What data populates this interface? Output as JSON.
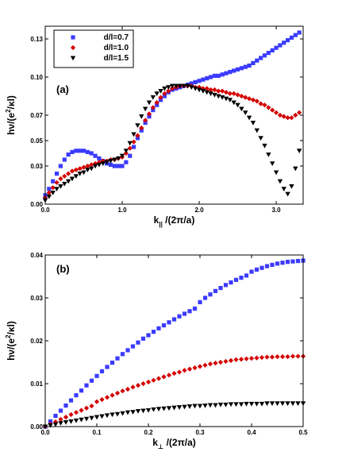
{
  "figure": {
    "background": "#ffffff"
  },
  "chart_data": [
    {
      "type": "scatter",
      "panel_label": "(a)",
      "xlabel": {
        "main": "k",
        "sub": "||",
        "rest": " /(2π/a)"
      },
      "ylabel": {
        "pre": "hν/(e",
        "sup": "2",
        "post": "/κl)"
      },
      "xlim": [
        0.0,
        3.35
      ],
      "ylim": [
        0.0,
        0.14
      ],
      "xticks": [
        0.0,
        1.0,
        2.0,
        3.0
      ],
      "xtick_labels": [
        "0.0",
        "1.0",
        "2.0",
        "3.0"
      ],
      "yticks": [
        0.0,
        0.03,
        0.05,
        0.07,
        0.1,
        0.13
      ],
      "ytick_labels": [
        "0.00",
        "0.03",
        "0.05",
        "0.07",
        "0.10",
        "0.13"
      ],
      "legend_position": "top-left",
      "series": [
        {
          "name": "d/l=0.7",
          "marker": "square",
          "color": "#3b3bff",
          "x": [
            0.0,
            0.05,
            0.1,
            0.15,
            0.2,
            0.25,
            0.3,
            0.35,
            0.4,
            0.45,
            0.5,
            0.55,
            0.6,
            0.65,
            0.7,
            0.75,
            0.8,
            0.85,
            0.9,
            0.95,
            1.0,
            1.05,
            1.1,
            1.15,
            1.2,
            1.25,
            1.3,
            1.35,
            1.4,
            1.45,
            1.5,
            1.55,
            1.6,
            1.65,
            1.7,
            1.75,
            1.8,
            1.85,
            1.9,
            1.95,
            2.0,
            2.05,
            2.1,
            2.15,
            2.2,
            2.25,
            2.3,
            2.35,
            2.4,
            2.45,
            2.5,
            2.55,
            2.6,
            2.65,
            2.7,
            2.75,
            2.8,
            2.85,
            2.9,
            2.95,
            3.0,
            3.05,
            3.1,
            3.15,
            3.2,
            3.25,
            3.3
          ],
          "y": [
            0.007,
            0.012,
            0.018,
            0.024,
            0.03,
            0.035,
            0.039,
            0.041,
            0.042,
            0.042,
            0.042,
            0.041,
            0.04,
            0.038,
            0.036,
            0.034,
            0.032,
            0.031,
            0.03,
            0.03,
            0.03,
            0.033,
            0.038,
            0.045,
            0.052,
            0.058,
            0.064,
            0.069,
            0.074,
            0.078,
            0.082,
            0.085,
            0.088,
            0.09,
            0.091,
            0.092,
            0.093,
            0.094,
            0.095,
            0.096,
            0.097,
            0.098,
            0.099,
            0.1,
            0.101,
            0.101,
            0.102,
            0.103,
            0.104,
            0.105,
            0.106,
            0.107,
            0.108,
            0.109,
            0.111,
            0.113,
            0.115,
            0.117,
            0.119,
            0.121,
            0.123,
            0.125,
            0.127,
            0.129,
            0.131,
            0.133,
            0.135
          ]
        },
        {
          "name": "d/l=1.0",
          "marker": "diamond",
          "color": "#d40000",
          "x": [
            0.0,
            0.05,
            0.1,
            0.15,
            0.2,
            0.25,
            0.3,
            0.35,
            0.4,
            0.45,
            0.5,
            0.55,
            0.6,
            0.65,
            0.7,
            0.75,
            0.8,
            0.85,
            0.9,
            0.95,
            1.0,
            1.05,
            1.1,
            1.15,
            1.2,
            1.25,
            1.3,
            1.35,
            1.4,
            1.45,
            1.5,
            1.55,
            1.6,
            1.65,
            1.7,
            1.75,
            1.8,
            1.85,
            1.9,
            1.95,
            2.0,
            2.05,
            2.1,
            2.15,
            2.2,
            2.25,
            2.3,
            2.35,
            2.4,
            2.45,
            2.5,
            2.55,
            2.6,
            2.65,
            2.7,
            2.75,
            2.8,
            2.85,
            2.9,
            2.95,
            3.0,
            3.05,
            3.1,
            3.15,
            3.2,
            3.25,
            3.3
          ],
          "y": [
            0.005,
            0.009,
            0.013,
            0.017,
            0.02,
            0.022,
            0.024,
            0.026,
            0.027,
            0.028,
            0.029,
            0.03,
            0.031,
            0.032,
            0.033,
            0.034,
            0.034,
            0.035,
            0.035,
            0.036,
            0.037,
            0.04,
            0.044,
            0.049,
            0.054,
            0.06,
            0.066,
            0.071,
            0.076,
            0.08,
            0.084,
            0.087,
            0.089,
            0.091,
            0.092,
            0.093,
            0.093,
            0.093,
            0.093,
            0.092,
            0.092,
            0.091,
            0.091,
            0.09,
            0.09,
            0.089,
            0.089,
            0.088,
            0.087,
            0.087,
            0.086,
            0.085,
            0.084,
            0.083,
            0.082,
            0.081,
            0.079,
            0.078,
            0.076,
            0.074,
            0.072,
            0.07,
            0.069,
            0.068,
            0.068,
            0.07,
            0.072
          ]
        },
        {
          "name": "d/l=1.5",
          "marker": "triangle-down",
          "color": "#000000",
          "x": [
            0.0,
            0.05,
            0.1,
            0.15,
            0.2,
            0.25,
            0.3,
            0.35,
            0.4,
            0.45,
            0.5,
            0.55,
            0.6,
            0.65,
            0.7,
            0.75,
            0.8,
            0.85,
            0.9,
            0.95,
            1.0,
            1.05,
            1.1,
            1.15,
            1.2,
            1.25,
            1.3,
            1.35,
            1.4,
            1.45,
            1.5,
            1.55,
            1.6,
            1.65,
            1.7,
            1.75,
            1.8,
            1.85,
            1.9,
            1.95,
            2.0,
            2.05,
            2.1,
            2.15,
            2.2,
            2.25,
            2.3,
            2.35,
            2.4,
            2.45,
            2.5,
            2.55,
            2.6,
            2.65,
            2.7,
            2.75,
            2.8,
            2.85,
            2.9,
            2.95,
            3.0,
            3.05,
            3.1,
            3.15,
            3.2,
            3.25,
            3.3
          ],
          "y": [
            0.003,
            0.006,
            0.009,
            0.012,
            0.014,
            0.016,
            0.018,
            0.02,
            0.022,
            0.024,
            0.025,
            0.027,
            0.028,
            0.03,
            0.031,
            0.032,
            0.033,
            0.034,
            0.035,
            0.036,
            0.038,
            0.042,
            0.048,
            0.055,
            0.062,
            0.069,
            0.075,
            0.08,
            0.084,
            0.087,
            0.089,
            0.091,
            0.092,
            0.093,
            0.093,
            0.093,
            0.093,
            0.093,
            0.092,
            0.091,
            0.09,
            0.089,
            0.088,
            0.087,
            0.086,
            0.085,
            0.084,
            0.083,
            0.082,
            0.08,
            0.078,
            0.075,
            0.072,
            0.068,
            0.064,
            0.058,
            0.052,
            0.046,
            0.039,
            0.032,
            0.025,
            0.018,
            0.012,
            0.008,
            0.014,
            0.028,
            0.042
          ]
        }
      ]
    },
    {
      "type": "scatter",
      "panel_label": "(b)",
      "xlabel": {
        "main": "k",
        "sub": "⊥",
        "rest": " /(2π/a)"
      },
      "ylabel": {
        "pre": "hν/(e",
        "sup": "2",
        "post": "/κl)"
      },
      "xlim": [
        0.0,
        0.5
      ],
      "ylim": [
        0.0,
        0.04
      ],
      "xticks": [
        0.0,
        0.1,
        0.2,
        0.3,
        0.4,
        0.5
      ],
      "xtick_labels": [
        "0.0",
        "0.1",
        "0.2",
        "0.3",
        "0.4",
        "0.5"
      ],
      "yticks": [
        0.0,
        0.01,
        0.02,
        0.03,
        0.04
      ],
      "ytick_labels": [
        "0.00",
        "0.01",
        "0.02",
        "0.03",
        "0.04"
      ],
      "series": [
        {
          "name": "d/l=0.7",
          "marker": "square",
          "color": "#3b3bff",
          "x": [
            0.0,
            0.01,
            0.02,
            0.03,
            0.04,
            0.05,
            0.06,
            0.07,
            0.08,
            0.09,
            0.1,
            0.11,
            0.12,
            0.13,
            0.14,
            0.15,
            0.16,
            0.17,
            0.18,
            0.19,
            0.2,
            0.21,
            0.22,
            0.23,
            0.24,
            0.25,
            0.26,
            0.27,
            0.28,
            0.29,
            0.3,
            0.31,
            0.32,
            0.33,
            0.34,
            0.35,
            0.36,
            0.37,
            0.38,
            0.39,
            0.4,
            0.41,
            0.42,
            0.43,
            0.44,
            0.45,
            0.46,
            0.47,
            0.48,
            0.49,
            0.5
          ],
          "y": [
            0.0,
            0.0012,
            0.0025,
            0.0037,
            0.0049,
            0.0061,
            0.0073,
            0.0084,
            0.0096,
            0.0107,
            0.0118,
            0.0129,
            0.0139,
            0.0149,
            0.0159,
            0.0169,
            0.0178,
            0.0187,
            0.0196,
            0.0205,
            0.0213,
            0.0221,
            0.0229,
            0.0236,
            0.0243,
            0.025,
            0.0257,
            0.0263,
            0.0269,
            0.0275,
            0.029,
            0.03,
            0.0308,
            0.0316,
            0.0323,
            0.033,
            0.0336,
            0.0342,
            0.0347,
            0.0352,
            0.0361,
            0.0366,
            0.037,
            0.0374,
            0.0377,
            0.038,
            0.0382,
            0.0384,
            0.0385,
            0.0386,
            0.0387
          ]
        },
        {
          "name": "d/l=1.0",
          "marker": "diamond",
          "color": "#d40000",
          "x": [
            0.0,
            0.01,
            0.02,
            0.03,
            0.04,
            0.05,
            0.06,
            0.07,
            0.08,
            0.09,
            0.1,
            0.11,
            0.12,
            0.13,
            0.14,
            0.15,
            0.16,
            0.17,
            0.18,
            0.19,
            0.2,
            0.21,
            0.22,
            0.23,
            0.24,
            0.25,
            0.26,
            0.27,
            0.28,
            0.29,
            0.3,
            0.31,
            0.32,
            0.33,
            0.34,
            0.35,
            0.36,
            0.37,
            0.38,
            0.39,
            0.4,
            0.41,
            0.42,
            0.43,
            0.44,
            0.45,
            0.46,
            0.47,
            0.48,
            0.49,
            0.5
          ],
          "y": [
            0.0,
            0.0006,
            0.0011,
            0.0017,
            0.0022,
            0.0028,
            0.0033,
            0.0038,
            0.0043,
            0.0048,
            0.0058,
            0.0063,
            0.0068,
            0.0073,
            0.0078,
            0.0083,
            0.0087,
            0.0092,
            0.0096,
            0.01,
            0.0104,
            0.0108,
            0.0112,
            0.0116,
            0.012,
            0.0124,
            0.0127,
            0.0131,
            0.0134,
            0.0137,
            0.014,
            0.0143,
            0.0146,
            0.0148,
            0.015,
            0.0152,
            0.0154,
            0.0156,
            0.0157,
            0.0158,
            0.0159,
            0.016,
            0.0161,
            0.0162,
            0.0162,
            0.0163,
            0.0163,
            0.0163,
            0.0164,
            0.0164,
            0.0164
          ]
        },
        {
          "name": "d/l=1.5",
          "marker": "triangle-down",
          "color": "#000000",
          "x": [
            0.0,
            0.01,
            0.02,
            0.03,
            0.04,
            0.05,
            0.06,
            0.07,
            0.08,
            0.09,
            0.1,
            0.11,
            0.12,
            0.13,
            0.14,
            0.15,
            0.16,
            0.17,
            0.18,
            0.19,
            0.2,
            0.21,
            0.22,
            0.23,
            0.24,
            0.25,
            0.26,
            0.27,
            0.28,
            0.29,
            0.3,
            0.31,
            0.32,
            0.33,
            0.34,
            0.35,
            0.36,
            0.37,
            0.38,
            0.39,
            0.4,
            0.41,
            0.42,
            0.43,
            0.44,
            0.45,
            0.46,
            0.47,
            0.48,
            0.49,
            0.5
          ],
          "y": [
            0.0,
            0.0003,
            0.0005,
            0.0008,
            0.001,
            0.0012,
            0.0014,
            0.0016,
            0.0018,
            0.002,
            0.0022,
            0.0024,
            0.0026,
            0.0028,
            0.0029,
            0.0031,
            0.0033,
            0.0034,
            0.0036,
            0.0037,
            0.0038,
            0.004,
            0.0041,
            0.0042,
            0.0043,
            0.0044,
            0.0045,
            0.0046,
            0.0047,
            0.0048,
            0.0048,
            0.0049,
            0.005,
            0.005,
            0.0051,
            0.0051,
            0.0052,
            0.0052,
            0.0052,
            0.0053,
            0.0053,
            0.0053,
            0.0053,
            0.0054,
            0.0054,
            0.0054,
            0.0054,
            0.0054,
            0.0054,
            0.0054,
            0.0054
          ]
        }
      ]
    }
  ]
}
